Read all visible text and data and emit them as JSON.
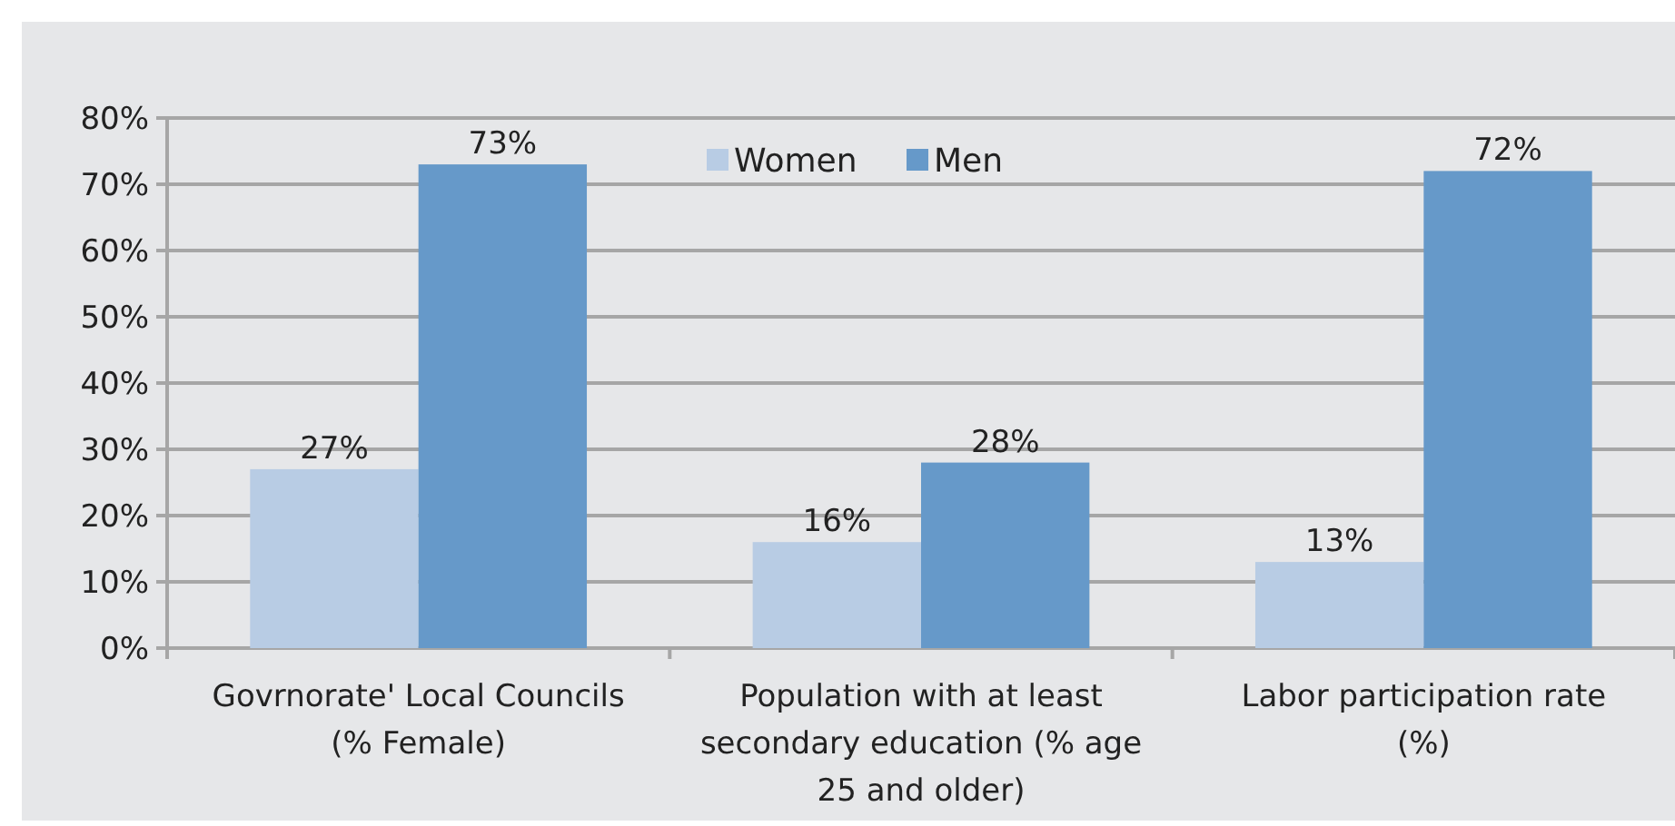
{
  "chart_data": {
    "type": "bar",
    "categories": [
      "Govrnorate' Local Councils (% Female)",
      "Population with at least secondary education (% age 25 and older)",
      "Labor participation rate (%)"
    ],
    "series": [
      {
        "name": "Women",
        "color": "#b8cce4",
        "values": [
          27,
          16,
          13
        ],
        "value_labels": [
          "27%",
          "16%",
          "13%"
        ]
      },
      {
        "name": "Men",
        "color": "#6699c9",
        "values": [
          73,
          28,
          72
        ],
        "value_labels": [
          "73%",
          "28%",
          "72%"
        ]
      }
    ],
    "ylim": [
      0,
      80
    ],
    "yticks": [
      {
        "value": 0,
        "label": "0%"
      },
      {
        "value": 10,
        "label": "10%"
      },
      {
        "value": 20,
        "label": "20%"
      },
      {
        "value": 30,
        "label": "30%"
      },
      {
        "value": 40,
        "label": "40%"
      },
      {
        "value": 50,
        "label": "50%"
      },
      {
        "value": 60,
        "label": "60%"
      },
      {
        "value": 70,
        "label": "70%"
      },
      {
        "value": 80,
        "label": "80%"
      }
    ],
    "grid": "y",
    "legend": "top"
  }
}
